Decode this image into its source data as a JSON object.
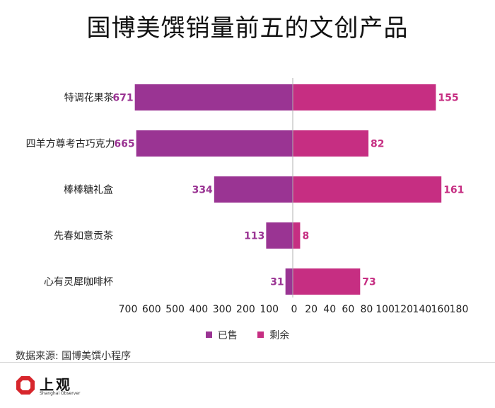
{
  "title": "国博美馔销量前五的文创产品",
  "source": "数据来源: 国博美馔小程序",
  "logo": {
    "text": "上观",
    "subtext": "Shanghai Observer"
  },
  "colors": {
    "sold": "#9a3493",
    "remaining": "#c62e82"
  },
  "chart_data": {
    "type": "bar",
    "orientation": "horizontal-diverging",
    "categories": [
      "特调花果茶",
      "四羊方尊考古巧克力",
      "棒棒糖礼盒",
      "先春如意贡茶",
      "心有灵犀咖啡杯"
    ],
    "series": [
      {
        "name": "已售",
        "values": [
          671,
          665,
          334,
          113,
          31
        ]
      },
      {
        "name": "剩余",
        "values": [
          155,
          82,
          161,
          8,
          73
        ]
      }
    ],
    "left_axis": {
      "ticks": [
        700,
        600,
        500,
        400,
        300,
        200,
        100,
        0
      ],
      "range": [
        0,
        700
      ]
    },
    "right_axis": {
      "ticks": [
        0,
        20,
        40,
        60,
        80,
        100,
        120,
        140,
        160,
        180
      ],
      "range": [
        0,
        180
      ]
    },
    "legend_position": "bottom",
    "grid": false
  }
}
